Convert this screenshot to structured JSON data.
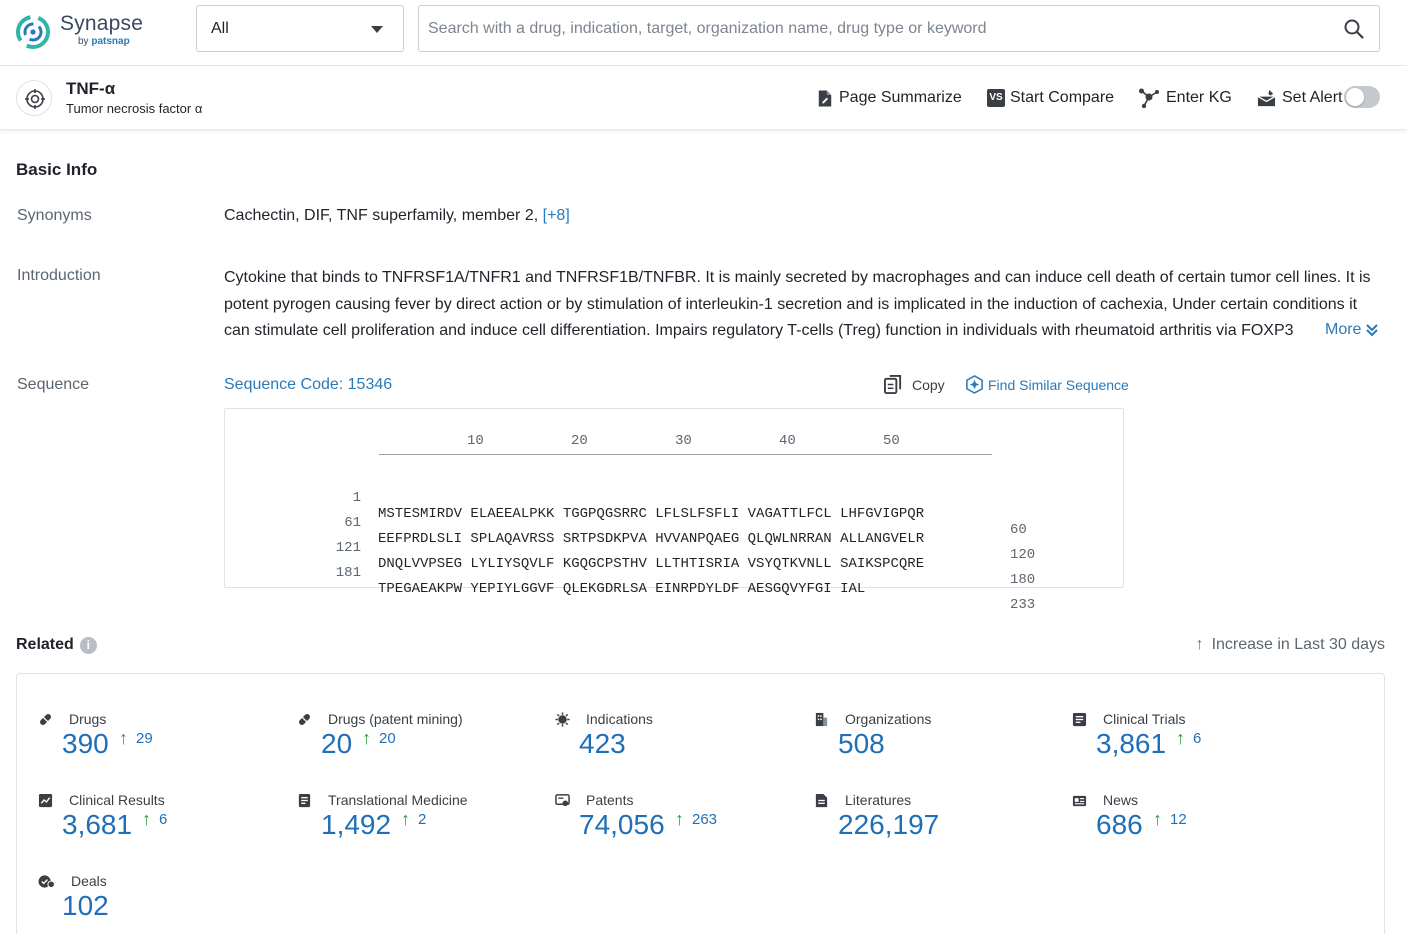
{
  "app": {
    "name": "Synapse",
    "by_prefix": "by",
    "by_brand": "patsnap"
  },
  "search": {
    "scope_value": "All",
    "placeholder": "Search with a drug, indication, target, organization name, drug type or keyword"
  },
  "target": {
    "name": "TNF-α",
    "full_name": "Tumor necrosis factor α",
    "actions": {
      "summarize": "Page Summarize",
      "compare_badge": "VS",
      "compare": "Start Compare",
      "kg": "Enter KG",
      "alert": "Set Alert"
    }
  },
  "basic_info": {
    "title": "Basic Info",
    "synonyms_label": "Synonyms",
    "synonyms": "Cachectin,  DIF,  TNF superfamily, member 2,",
    "synonyms_more": "[+8]",
    "introduction_label": "Introduction",
    "introduction": "Cytokine that binds to TNFRSF1A/TNFR1 and TNFRSF1B/TNFBR. It is mainly secreted by macrophages and can induce cell death of certain tumor cell lines. It is potent pyrogen causing fever by direct action or by stimulation of interleukin-1 secretion and is implicated in the induction of cachexia, Under certain conditions it can stimulate cell proliferation and induce cell differentiation. Impairs regulatory T-cells (Treg) function in individuals with rheumatoid arthritis via FOXP3",
    "introduction_more": "More",
    "sequence_label": "Sequence",
    "sequence_code": "Sequence Code: 15346",
    "copy": "Copy",
    "find_similar": "Find Similar Sequence",
    "ruler": [
      "10",
      "20",
      "30",
      "40",
      "50"
    ],
    "rows": [
      {
        "start": "1",
        "seq": "MSTESMIRDV ELAEEALPKK TGGPQGSRRC LFLSLFSFLI VAGATTLFCL LHFGVIGPQR",
        "end": "60"
      },
      {
        "start": "61",
        "seq": "EEFPRDLSLI SPLAQAVRSS SRTPSDKPVA HVVANPQAEG QLQWLNRRAN ALLANGVELR",
        "end": "120"
      },
      {
        "start": "121",
        "seq": "DNQLVVPSEG LYLIYSQVLF KGQGCPSTHV LLTHTISRIA VSYQTKVNLL SAIKSPCQRE",
        "end": "180"
      },
      {
        "start": "181",
        "seq": "TPEGAEAKPW YEPIYLGGVF QLEKGDRLSA EINRPDYLDF AESGQVYFGI IAL",
        "end": "233"
      }
    ]
  },
  "related": {
    "title": "Related",
    "info_glyph": "i",
    "increase_note": "Increase in Last 30 days",
    "arrow_glyph": "↑",
    "stats": [
      {
        "label": "Drugs",
        "value": "390",
        "increase": "29",
        "icon": "pill-icon"
      },
      {
        "label": "Drugs (patent mining)",
        "value": "20",
        "increase": "20",
        "icon": "pill-icon"
      },
      {
        "label": "Indications",
        "value": "423",
        "increase": "",
        "icon": "virus-icon"
      },
      {
        "label": "Organizations",
        "value": "508",
        "increase": "",
        "icon": "building-icon"
      },
      {
        "label": "Clinical Trials",
        "value": "3,861",
        "increase": "6",
        "icon": "clipboard-icon"
      },
      {
        "label": "Clinical Results",
        "value": "3,681",
        "increase": "6",
        "icon": "chart-doc-icon"
      },
      {
        "label": "Translational Medicine",
        "value": "1,492",
        "increase": "2",
        "icon": "doc-icon"
      },
      {
        "label": "Patents",
        "value": "74,056",
        "increase": "263",
        "icon": "patent-icon"
      },
      {
        "label": "Literatures",
        "value": "226,197",
        "increase": "",
        "icon": "literature-icon"
      },
      {
        "label": "News",
        "value": "686",
        "increase": "12",
        "icon": "news-icon"
      },
      {
        "label": "Deals",
        "value": "102",
        "increase": "",
        "icon": "deal-icon"
      }
    ]
  },
  "colors": {
    "accent": "#2a7ab8",
    "number": "#1f6fb8",
    "increase_arrow": "#2e9c3a"
  }
}
